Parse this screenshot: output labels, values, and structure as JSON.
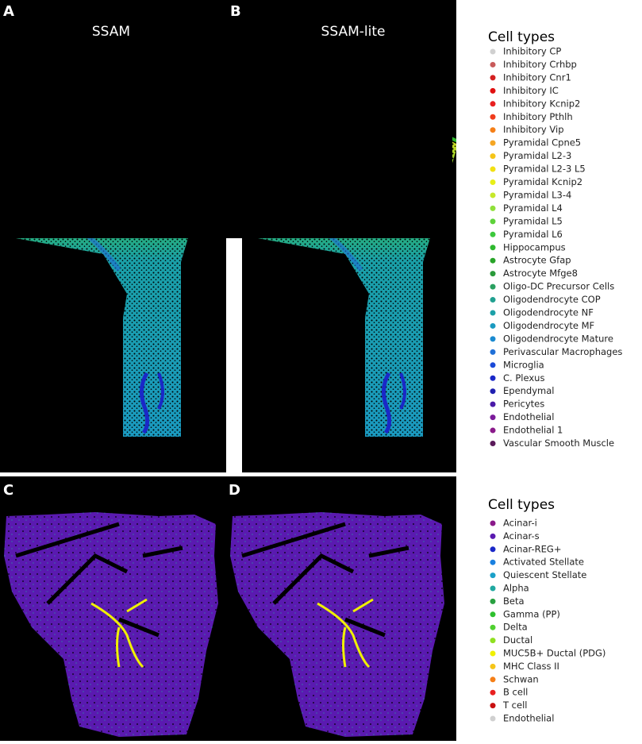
{
  "panels": [
    {
      "label": "A",
      "title": "SSAM"
    },
    {
      "label": "B",
      "title": "SSAM-lite"
    },
    {
      "label": "C"
    },
    {
      "label": "D"
    }
  ],
  "legends": [
    {
      "title": "Cell types",
      "items": [
        {
          "label": "Inhibitory CP",
          "color": "#d0d0d0"
        },
        {
          "label": "Inhibitory Crhbp",
          "color": "#c85a5a"
        },
        {
          "label": "Inhibitory Cnr1",
          "color": "#d42020"
        },
        {
          "label": "Inhibitory IC",
          "color": "#e01010"
        },
        {
          "label": "Inhibitory Kcnip2",
          "color": "#e82020"
        },
        {
          "label": "Inhibitory Pthlh",
          "color": "#f03c1c"
        },
        {
          "label": "Inhibitory Vip",
          "color": "#f57f17"
        },
        {
          "label": "Pyramidal Cpne5",
          "color": "#f5a623"
        },
        {
          "label": "Pyramidal L2-3",
          "color": "#f5c518"
        },
        {
          "label": "Pyramidal L2-3 L5",
          "color": "#f2e012"
        },
        {
          "label": "Pyramidal Kcnip2",
          "color": "#e8ef18"
        },
        {
          "label": "Pyramidal L3-4",
          "color": "#c6e82a"
        },
        {
          "label": "Pyramidal L4",
          "color": "#8fe03a"
        },
        {
          "label": "Pyramidal L5",
          "color": "#5ed23a"
        },
        {
          "label": "Pyramidal L6",
          "color": "#3cc83c"
        },
        {
          "label": "Hippocampus",
          "color": "#2eb82e"
        },
        {
          "label": "Astrocyte Gfap",
          "color": "#28a428"
        },
        {
          "label": "Astrocyte Mfge8",
          "color": "#2a9a3a"
        },
        {
          "label": "Oligo-DC Precursor Cells",
          "color": "#2aa060"
        },
        {
          "label": "Oligodendrocyte COP",
          "color": "#20a090"
        },
        {
          "label": "Oligodendrocyte NF",
          "color": "#1ca0a8"
        },
        {
          "label": "Oligodendrocyte MF",
          "color": "#1a9ac0"
        },
        {
          "label": "Oligodendrocyte Mature",
          "color": "#1a8ad0"
        },
        {
          "label": "Perivascular Macrophages",
          "color": "#2070d8"
        },
        {
          "label": "Microglia",
          "color": "#1a4ad8"
        },
        {
          "label": "C. Plexus",
          "color": "#1a28c8"
        },
        {
          "label": "Ependymal",
          "color": "#2020b0"
        },
        {
          "label": "Pericytes",
          "color": "#4a1aa8"
        },
        {
          "label": "Endothelial",
          "color": "#7a1a9a"
        },
        {
          "label": "Endothelial 1",
          "color": "#8a1a8a"
        },
        {
          "label": "Vascular Smooth Muscle",
          "color": "#5a1a5a"
        }
      ]
    },
    {
      "title": "Cell types",
      "items": [
        {
          "label": "Acinar-i",
          "color": "#8a1a8a"
        },
        {
          "label": "Acinar-s",
          "color": "#5a1ab0"
        },
        {
          "label": "Acinar-REG+",
          "color": "#1a28c8"
        },
        {
          "label": "Activated Stellate",
          "color": "#1a80e0"
        },
        {
          "label": "Quiescent Stellate",
          "color": "#1aa0c8"
        },
        {
          "label": "Alpha",
          "color": "#20a8a0"
        },
        {
          "label": "Beta",
          "color": "#28a040"
        },
        {
          "label": "Gamma (PP)",
          "color": "#2ec02e"
        },
        {
          "label": "Delta",
          "color": "#50d030"
        },
        {
          "label": "Ductal",
          "color": "#90e020"
        },
        {
          "label": "MUC5B+ Ductal (PDG)",
          "color": "#f0f000"
        },
        {
          "label": "MHC Class II",
          "color": "#f5c518"
        },
        {
          "label": "Schwan",
          "color": "#f57f17"
        },
        {
          "label": "B cell",
          "color": "#e82020"
        },
        {
          "label": "T cell",
          "color": "#c81010"
        },
        {
          "label": "Endothelial",
          "color": "#d0d0d0"
        }
      ]
    }
  ]
}
